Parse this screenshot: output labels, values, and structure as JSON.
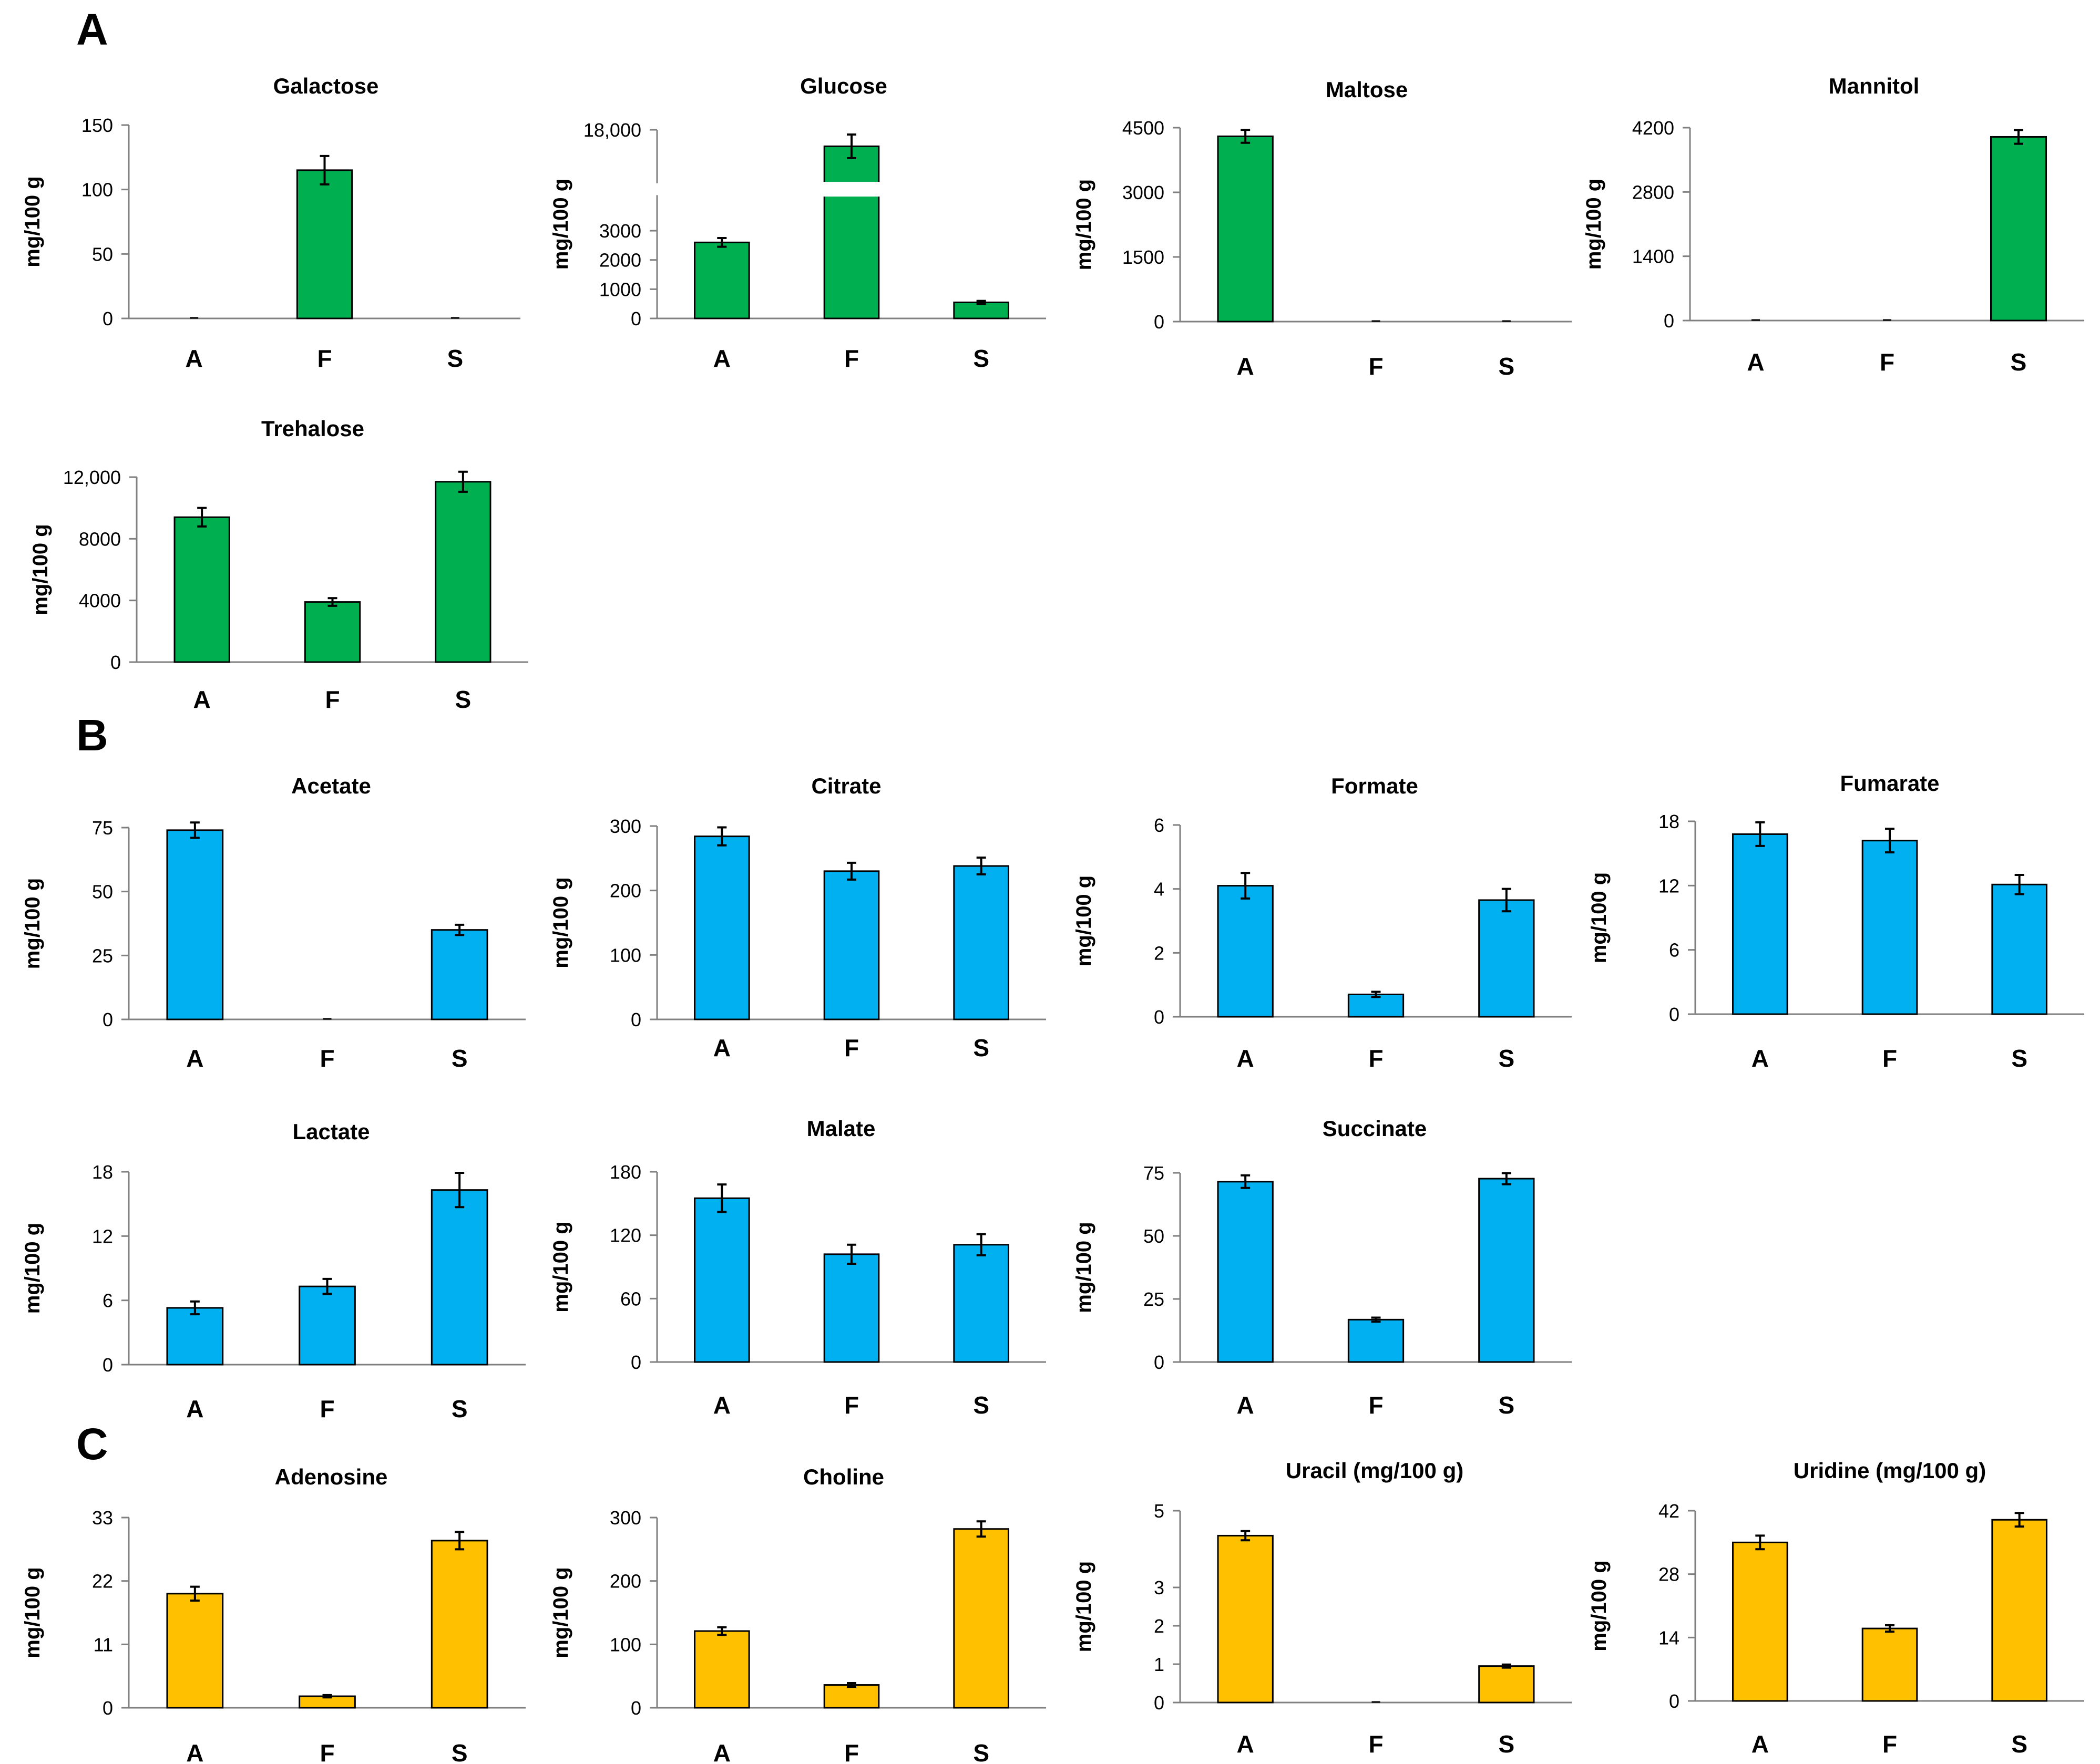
{
  "colors": {
    "green": "#00B050",
    "blue": "#00B0F0",
    "yellow": "#FFC000",
    "axis": "#808080",
    "ink": "#000000"
  },
  "panels": [
    {
      "letter": "A",
      "id": "sugars"
    },
    {
      "letter": "B",
      "id": "organic-acids"
    },
    {
      "letter": "C",
      "id": "nucleosides"
    }
  ],
  "chart_data": [
    {
      "type": "bar",
      "panel": "A",
      "title": "Galactose",
      "ylabel": "mg/100 g",
      "categories": [
        "A",
        "F",
        "S"
      ],
      "values": [
        0,
        115,
        0
      ],
      "errors": [
        0,
        11,
        0
      ],
      "ylim": [
        0,
        150
      ],
      "ticks": [
        0,
        50,
        100,
        150
      ],
      "tick_labels": [
        "0",
        "50",
        "100",
        "150"
      ],
      "color": "green"
    },
    {
      "type": "bar",
      "panel": "A",
      "title": "Glucose",
      "ylabel": "mg/100 g",
      "categories": [
        "A",
        "F",
        "S"
      ],
      "values": [
        2600,
        16600,
        550
      ],
      "errors": [
        150,
        1000,
        50
      ],
      "ylim": [
        0,
        18000
      ],
      "ticks": [
        0,
        1000,
        2000,
        3000,
        18000
      ],
      "tick_labels": [
        "0",
        "1000",
        "2000",
        "3000",
        "18,000"
      ],
      "axis_break": [
        4000,
        14000
      ],
      "color": "green"
    },
    {
      "type": "bar",
      "panel": "A",
      "title": "Maltose",
      "ylabel": "mg/100 g",
      "categories": [
        "A",
        "F",
        "S"
      ],
      "values": [
        4300,
        0,
        0
      ],
      "errors": [
        150,
        0,
        0
      ],
      "ylim": [
        0,
        4500
      ],
      "ticks": [
        0,
        1500,
        3000,
        4500
      ],
      "tick_labels": [
        "0",
        "1500",
        "3000",
        "4500"
      ],
      "color": "green"
    },
    {
      "type": "bar",
      "panel": "A",
      "title": "Mannitol",
      "ylabel": "mg/100 g",
      "categories": [
        "A",
        "F",
        "S"
      ],
      "values": [
        0,
        0,
        4000
      ],
      "errors": [
        0,
        0,
        150
      ],
      "ylim": [
        0,
        4200
      ],
      "ticks": [
        0,
        1400,
        2800,
        4200
      ],
      "tick_labels": [
        "0",
        "1400",
        "2800",
        "4200"
      ],
      "color": "green"
    },
    {
      "type": "bar",
      "panel": "A",
      "title": "Trehalose",
      "ylabel": "mg/100 g",
      "categories": [
        "A",
        "F",
        "S"
      ],
      "values": [
        9400,
        3900,
        11700
      ],
      "errors": [
        600,
        250,
        650
      ],
      "ylim": [
        0,
        12000
      ],
      "ticks": [
        0,
        4000,
        8000,
        12000
      ],
      "tick_labels": [
        "0",
        "4000",
        "8000",
        "12,000"
      ],
      "color": "green"
    },
    {
      "type": "bar",
      "panel": "B",
      "title": "Acetate",
      "ylabel": "mg/100 g",
      "categories": [
        "A",
        "F",
        "S"
      ],
      "values": [
        74,
        0,
        35
      ],
      "errors": [
        3,
        0,
        2
      ],
      "ylim": [
        0,
        75
      ],
      "ticks": [
        0,
        25,
        50,
        75
      ],
      "tick_labels": [
        "0",
        "25",
        "50",
        "75"
      ],
      "color": "blue"
    },
    {
      "type": "bar",
      "panel": "B",
      "title": "Citrate",
      "ylabel": "mg/100 g",
      "categories": [
        "A",
        "F",
        "S"
      ],
      "values": [
        284,
        230,
        238
      ],
      "errors": [
        14,
        13,
        13
      ],
      "ylim": [
        0,
        300
      ],
      "ticks": [
        0,
        100,
        200,
        300
      ],
      "tick_labels": [
        "0",
        "100",
        "200",
        "300"
      ],
      "color": "blue"
    },
    {
      "type": "bar",
      "panel": "B",
      "title": "Formate",
      "ylabel": "mg/100 g",
      "categories": [
        "A",
        "F",
        "S"
      ],
      "values": [
        4.1,
        0.7,
        3.65
      ],
      "errors": [
        0.4,
        0.08,
        0.35
      ],
      "ylim": [
        0,
        6
      ],
      "ticks": [
        0,
        2,
        4,
        6
      ],
      "tick_labels": [
        "0",
        "2",
        "4",
        "6"
      ],
      "color": "blue"
    },
    {
      "type": "bar",
      "panel": "B",
      "title": "Fumarate",
      "ylabel": "mg/100 g",
      "categories": [
        "A",
        "F",
        "S"
      ],
      "values": [
        16.8,
        16.2,
        12.1
      ],
      "errors": [
        1.1,
        1.1,
        0.9
      ],
      "ylim": [
        0,
        18
      ],
      "ticks": [
        0,
        6,
        12,
        18
      ],
      "tick_labels": [
        "0",
        "6",
        "12",
        "18"
      ],
      "color": "blue"
    },
    {
      "type": "bar",
      "panel": "B",
      "title": "Lactate",
      "ylabel": "mg/100 g",
      "categories": [
        "A",
        "F",
        "S"
      ],
      "values": [
        5.3,
        7.3,
        16.3
      ],
      "errors": [
        0.6,
        0.7,
        1.6
      ],
      "ylim": [
        0,
        18
      ],
      "ticks": [
        0,
        6,
        12,
        18
      ],
      "tick_labels": [
        "0",
        "6",
        "12",
        "18"
      ],
      "color": "blue"
    },
    {
      "type": "bar",
      "panel": "B",
      "title": "Malate",
      "ylabel": "mg/100 g",
      "categories": [
        "A",
        "F",
        "S"
      ],
      "values": [
        155,
        102,
        111
      ],
      "errors": [
        13,
        9,
        10
      ],
      "ylim": [
        0,
        180
      ],
      "ticks": [
        0,
        60,
        120,
        180
      ],
      "tick_labels": [
        "0",
        "60",
        "120",
        "180"
      ],
      "color": "blue"
    },
    {
      "type": "bar",
      "panel": "B",
      "title": "Succinate",
      "ylabel": "mg/100 g",
      "categories": [
        "A",
        "F",
        "S"
      ],
      "values": [
        71.5,
        16.8,
        72.7
      ],
      "errors": [
        2.5,
        0.8,
        2.2
      ],
      "ylim": [
        0,
        75
      ],
      "ticks": [
        0,
        25,
        50,
        75
      ],
      "tick_labels": [
        "0",
        "25",
        "50",
        "75"
      ],
      "color": "blue"
    },
    {
      "type": "bar",
      "panel": "C",
      "title": "Adenosine",
      "ylabel": "mg/100 g",
      "categories": [
        "A",
        "F",
        "S"
      ],
      "values": [
        19.8,
        2.0,
        29.0
      ],
      "errors": [
        1.2,
        0.2,
        1.5
      ],
      "ylim": [
        0,
        33
      ],
      "ticks": [
        0,
        11,
        22,
        33
      ],
      "tick_labels": [
        "0",
        "11",
        "22",
        "33"
      ],
      "color": "yellow"
    },
    {
      "type": "bar",
      "panel": "C",
      "title": "Choline",
      "ylabel": "mg/100 g",
      "categories": [
        "A",
        "F",
        "S"
      ],
      "values": [
        121,
        36,
        282
      ],
      "errors": [
        6,
        3,
        12
      ],
      "ylim": [
        0,
        300
      ],
      "ticks": [
        0,
        100,
        200,
        300
      ],
      "tick_labels": [
        "0",
        "100",
        "200",
        "300"
      ],
      "color": "yellow"
    },
    {
      "type": "bar",
      "panel": "C",
      "title": "Uracil (mg/100 g)",
      "ylabel": "mg/100 g",
      "categories": [
        "A",
        "F",
        "S"
      ],
      "values": [
        4.35,
        0,
        0.95
      ],
      "errors": [
        0.12,
        0,
        0.04
      ],
      "ylim": [
        0,
        5
      ],
      "ticks": [
        0,
        1,
        2,
        3,
        5
      ],
      "tick_labels": [
        "0",
        "1",
        "2",
        "3",
        "5"
      ],
      "color": "yellow"
    },
    {
      "type": "bar",
      "panel": "C",
      "title": "Uridine (mg/100 g)",
      "ylabel": "mg/100 g",
      "categories": [
        "A",
        "F",
        "S"
      ],
      "values": [
        35,
        16,
        40
      ],
      "errors": [
        1.5,
        0.7,
        1.5
      ],
      "ylim": [
        0,
        42
      ],
      "ticks": [
        0,
        14,
        28,
        42
      ],
      "tick_labels": [
        "0",
        "14",
        "28",
        "42"
      ],
      "color": "yellow"
    }
  ]
}
